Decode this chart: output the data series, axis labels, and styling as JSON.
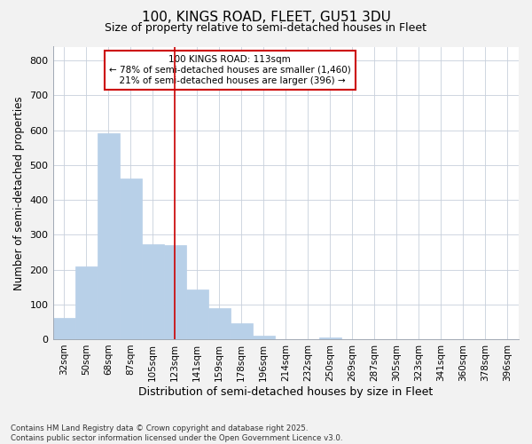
{
  "title": "100, KINGS ROAD, FLEET, GU51 3DU",
  "subtitle": "Size of property relative to semi-detached houses in Fleet",
  "xlabel": "Distribution of semi-detached houses by size in Fleet",
  "ylabel": "Number of semi-detached properties",
  "categories": [
    "32sqm",
    "50sqm",
    "68sqm",
    "87sqm",
    "105sqm",
    "123sqm",
    "141sqm",
    "159sqm",
    "178sqm",
    "196sqm",
    "214sqm",
    "232sqm",
    "250sqm",
    "269sqm",
    "287sqm",
    "305sqm",
    "323sqm",
    "341sqm",
    "360sqm",
    "378sqm",
    "396sqm"
  ],
  "values": [
    60,
    210,
    591,
    462,
    272,
    270,
    143,
    90,
    47,
    10,
    0,
    0,
    5,
    0,
    0,
    0,
    0,
    0,
    0,
    0,
    0
  ],
  "bar_color": "#b8d0e8",
  "bar_edge_color": "#b8d0e8",
  "vline_x": 5,
  "vline_color": "#cc0000",
  "annotation_text_line1": "100 KINGS ROAD: 113sqm",
  "annotation_text_line2": "← 78% of semi-detached houses are smaller (1,460)",
  "annotation_text_line3": "  21% of semi-detached houses are larger (396) →",
  "annotation_box_color": "#cc0000",
  "ylim": [
    0,
    840
  ],
  "yticks": [
    0,
    100,
    200,
    300,
    400,
    500,
    600,
    700,
    800
  ],
  "footer_text": "Contains HM Land Registry data © Crown copyright and database right 2025.\nContains public sector information licensed under the Open Government Licence v3.0.",
  "background_color": "#f2f2f2",
  "plot_background_color": "#ffffff",
  "grid_color": "#c8d0dc"
}
